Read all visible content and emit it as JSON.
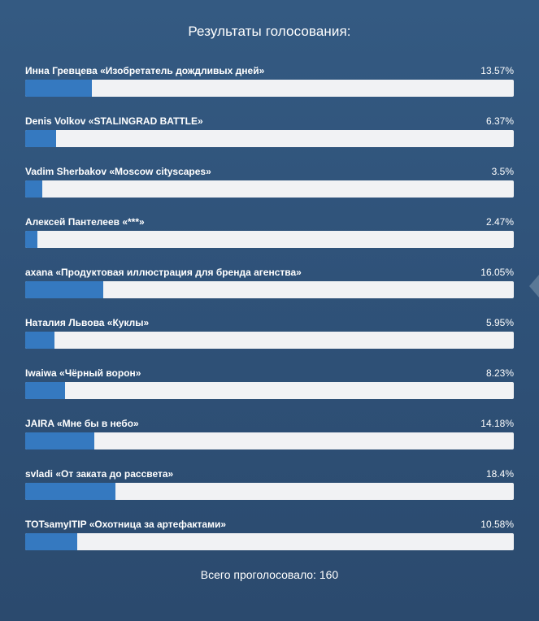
{
  "poll": {
    "title": "Результаты голосования:",
    "total_label": "Всего проголосовало: 160",
    "colors": {
      "bar_fill": "#3579c0",
      "bar_track": "#f1f2f4",
      "background": "#2f5279"
    },
    "items": [
      {
        "label": "Инна Гревцева «Изобретатель дождливых дней»",
        "percent_text": "13.57%",
        "percent": 13.57
      },
      {
        "label": "Denis Volkov «STALINGRAD BATTLE»",
        "percent_text": "6.37%",
        "percent": 6.37
      },
      {
        "label": "Vadim Sherbakov «Moscow cityscapes»",
        "percent_text": "3.5%",
        "percent": 3.5
      },
      {
        "label": "Алексей Пантелеев «***»",
        "percent_text": "2.47%",
        "percent": 2.47
      },
      {
        "label": "axana «Продуктовая иллюстрация для бренда агенства»",
        "percent_text": "16.05%",
        "percent": 16.05
      },
      {
        "label": "Наталия Львова «Куклы»",
        "percent_text": "5.95%",
        "percent": 5.95
      },
      {
        "label": "Iwaiwa «Чёрный ворон»",
        "percent_text": "8.23%",
        "percent": 8.23
      },
      {
        "label": "JAIRA «Мне бы в небо»",
        "percent_text": "14.18%",
        "percent": 14.18
      },
      {
        "label": "svladi «От заката до рассвета»",
        "percent_text": "18.4%",
        "percent": 18.4
      },
      {
        "label": "TOTsamyITIP «Охотница за артефактами»",
        "percent_text": "10.58%",
        "percent": 10.58
      }
    ]
  },
  "side_control": {
    "icon": "arrow-left-icon"
  }
}
